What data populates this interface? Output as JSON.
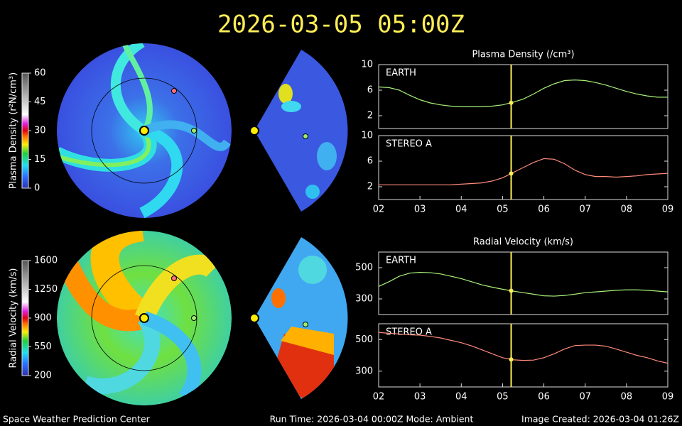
{
  "title": "2026-03-05  05:00Z",
  "footer": {
    "left": "Space Weather Prediction Center",
    "center": "Run Time: 2026-03-04 00:00Z  Mode: Ambient",
    "right": "Image Created: 2026-03-04 01:26Z"
  },
  "colorbars": [
    {
      "label": "Plasma Density (r²N/cm³)",
      "lim": [
        0,
        60
      ],
      "ticks": [
        0,
        15,
        30,
        45,
        60
      ]
    },
    {
      "label": "Radial Velocity (km/s)",
      "lim": [
        200,
        1600
      ],
      "ticks": [
        200,
        550,
        900,
        1250,
        1600
      ]
    }
  ],
  "chart_data": [
    {
      "type": "line",
      "title": "Plasma Density (/cm³)",
      "label": "EARTH",
      "color": "#a8f07a",
      "x": [
        2,
        2.25,
        2.5,
        2.75,
        3,
        3.25,
        3.5,
        3.75,
        4,
        4.25,
        4.5,
        4.75,
        5,
        5.25,
        5.5,
        5.75,
        6,
        6.25,
        6.5,
        6.75,
        7,
        7.25,
        7.5,
        7.75,
        8,
        8.25,
        8.5,
        8.75,
        9
      ],
      "values": [
        6.5,
        6.4,
        6,
        5.2,
        4.5,
        4,
        3.7,
        3.5,
        3.4,
        3.4,
        3.4,
        3.5,
        3.7,
        4.1,
        4.6,
        5.4,
        6.3,
        7,
        7.5,
        7.6,
        7.5,
        7.2,
        6.8,
        6.3,
        5.8,
        5.4,
        5.1,
        4.9,
        4.9
      ],
      "xlim": [
        2,
        9
      ],
      "ylim": [
        0,
        10
      ],
      "yticks": [
        2,
        6,
        10
      ],
      "marker_x": 5.208
    },
    {
      "type": "line",
      "label": "STEREO A",
      "color": "#ff8a7a",
      "x": [
        2,
        2.25,
        2.5,
        2.75,
        3,
        3.25,
        3.5,
        3.75,
        4,
        4.25,
        4.5,
        4.75,
        5,
        5.25,
        5.5,
        5.75,
        6,
        6.25,
        6.5,
        6.75,
        7,
        7.25,
        7.5,
        7.75,
        8,
        8.25,
        8.5,
        8.75,
        9
      ],
      "values": [
        2.3,
        2.3,
        2.3,
        2.3,
        2.3,
        2.3,
        2.3,
        2.3,
        2.4,
        2.5,
        2.6,
        2.9,
        3.4,
        4.2,
        5,
        5.8,
        6.4,
        6.3,
        5.6,
        4.6,
        3.9,
        3.6,
        3.6,
        3.5,
        3.6,
        3.7,
        3.9,
        4,
        4.1
      ],
      "xlim": [
        2,
        9
      ],
      "ylim": [
        0,
        10
      ],
      "yticks": [
        2,
        6,
        10
      ],
      "marker_x": 5.208,
      "xticks": [
        {
          "value": 2,
          "label": "02"
        },
        {
          "value": 3,
          "label": "03"
        },
        {
          "value": 4,
          "label": "04"
        },
        {
          "value": 5,
          "label": "05"
        },
        {
          "value": 6,
          "label": "06"
        },
        {
          "value": 7,
          "label": "07"
        },
        {
          "value": 8,
          "label": "08"
        },
        {
          "value": 9,
          "label": "09"
        }
      ]
    },
    {
      "type": "line",
      "title": "Radial Velocity (km/s)",
      "label": "EARTH",
      "color": "#a8f07a",
      "x": [
        2,
        2.25,
        2.5,
        2.75,
        3,
        3.25,
        3.5,
        3.75,
        4,
        4.25,
        4.5,
        4.75,
        5,
        5.25,
        5.5,
        5.75,
        6,
        6.25,
        6.5,
        6.75,
        7,
        7.25,
        7.5,
        7.75,
        8,
        8.25,
        8.5,
        8.75,
        9
      ],
      "values": [
        380,
        410,
        445,
        465,
        470,
        468,
        460,
        445,
        430,
        410,
        390,
        375,
        362,
        350,
        340,
        330,
        320,
        318,
        322,
        330,
        340,
        345,
        350,
        355,
        358,
        358,
        355,
        350,
        345
      ],
      "xlim": [
        2,
        9
      ],
      "ylim": [
        200,
        600
      ],
      "yticks": [
        300,
        500
      ],
      "marker_x": 5.208
    },
    {
      "type": "line",
      "label": "STEREO A",
      "color": "#ff8a7a",
      "x": [
        2,
        2.25,
        2.5,
        2.75,
        3,
        3.25,
        3.5,
        3.75,
        4,
        4.25,
        4.5,
        4.75,
        5,
        5.25,
        5.5,
        5.75,
        6,
        6.25,
        6.5,
        6.75,
        7,
        7.25,
        7.5,
        7.75,
        8,
        8.25,
        8.5,
        8.75,
        9
      ],
      "values": [
        545,
        540,
        535,
        530,
        528,
        520,
        510,
        495,
        480,
        460,
        435,
        410,
        385,
        372,
        368,
        370,
        385,
        410,
        440,
        462,
        465,
        465,
        458,
        440,
        420,
        400,
        385,
        365,
        350
      ],
      "xlim": [
        2,
        9
      ],
      "ylim": [
        200,
        600
      ],
      "yticks": [
        300,
        500
      ],
      "marker_x": 5.208,
      "xticks": [
        {
          "value": 2,
          "label": "02"
        },
        {
          "value": 3,
          "label": "03"
        },
        {
          "value": 4,
          "label": "04"
        },
        {
          "value": 5,
          "label": "05"
        },
        {
          "value": 6,
          "label": "06"
        },
        {
          "value": 7,
          "label": "07"
        },
        {
          "value": 8,
          "label": "08"
        },
        {
          "value": 9,
          "label": "09"
        }
      ]
    }
  ]
}
